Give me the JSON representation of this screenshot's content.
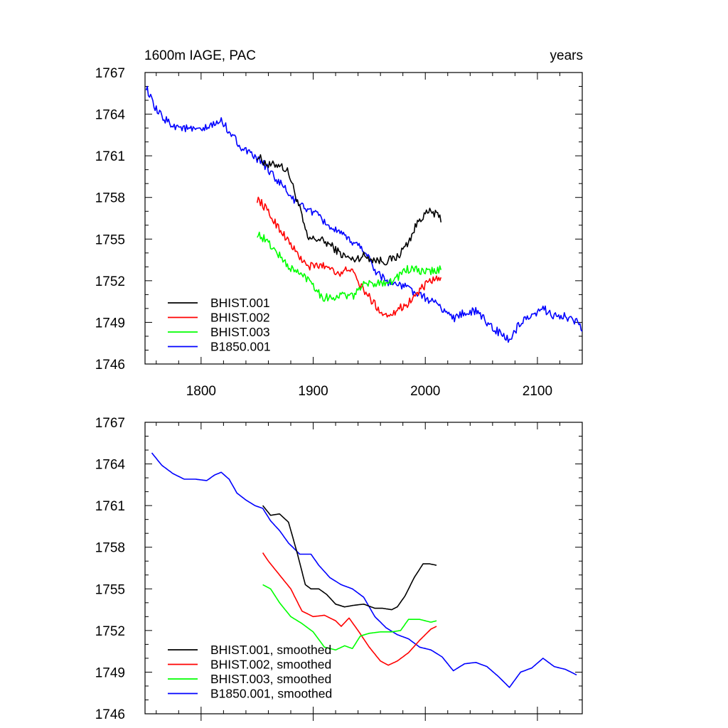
{
  "chart_data": [
    {
      "type": "line",
      "title_left": "1600m IAGE, PAC",
      "title_right": "years",
      "xlim": [
        1750,
        2140
      ],
      "ylim": [
        1746,
        1767
      ],
      "xticks": [
        1800,
        1900,
        2000,
        2100
      ],
      "xtick_labels": [
        "1800",
        "1900",
        "2000",
        "2100"
      ],
      "yticks": [
        1746,
        1749,
        1752,
        1755,
        1758,
        1761,
        1764,
        1767
      ],
      "ytick_labels": [
        "1746",
        "1749",
        "1752",
        "1755",
        "1758",
        "1761",
        "1764",
        "1767"
      ],
      "legend": [
        "BHIST.001",
        "BHIST.002",
        "BHIST.003",
        "B1850.001"
      ],
      "series": [
        {
          "name": "BHIST.001",
          "color": "#000000",
          "noise": 0.3,
          "x": [
            1850,
            1860,
            1870,
            1878,
            1888,
            1895,
            1905,
            1915,
            1925,
            1935,
            1945,
            1955,
            1965,
            1975,
            1985,
            1995,
            2005,
            2014
          ],
          "y": [
            1761.0,
            1760.3,
            1760.4,
            1759.8,
            1757.2,
            1755.0,
            1755.0,
            1754.6,
            1753.9,
            1753.5,
            1753.8,
            1753.5,
            1753.4,
            1753.7,
            1754.8,
            1756.5,
            1757.0,
            1756.5
          ]
        },
        {
          "name": "BHIST.002",
          "color": "#ff0000",
          "noise": 0.3,
          "x": [
            1850,
            1855,
            1865,
            1875,
            1885,
            1895,
            1905,
            1915,
            1925,
            1932,
            1940,
            1950,
            1960,
            1965,
            1975,
            1985,
            1995,
            2005,
            2014
          ],
          "y": [
            1757.9,
            1757.5,
            1756.3,
            1755.2,
            1754.0,
            1753.0,
            1753.1,
            1753.0,
            1752.4,
            1753.0,
            1751.9,
            1750.8,
            1749.8,
            1749.5,
            1749.9,
            1750.4,
            1751.3,
            1752.0,
            1752.1
          ]
        },
        {
          "name": "BHIST.003",
          "color": "#00ff00",
          "noise": 0.3,
          "x": [
            1850,
            1858,
            1868,
            1878,
            1888,
            1898,
            1908,
            1918,
            1928,
            1935,
            1942,
            1952,
            1962,
            1972,
            1982,
            1990,
            2000,
            2014
          ],
          "y": [
            1755.4,
            1754.9,
            1754.0,
            1753.0,
            1752.5,
            1752.0,
            1750.8,
            1750.8,
            1751.0,
            1750.8,
            1751.6,
            1751.8,
            1751.9,
            1752.0,
            1752.8,
            1752.8,
            1752.6,
            1752.8
          ]
        },
        {
          "name": "B1850.001",
          "color": "#0000ff",
          "noise": 0.3,
          "x": [
            1751,
            1758,
            1765,
            1775,
            1790,
            1800,
            1810,
            1818,
            1825,
            1835,
            1845,
            1855,
            1865,
            1875,
            1885,
            1895,
            1905,
            1915,
            1925,
            1935,
            1945,
            1955,
            1965,
            1975,
            1985,
            1995,
            2005,
            2015,
            2025,
            2035,
            2045,
            2055,
            2065,
            2075,
            2085,
            2095,
            2105,
            2115,
            2125,
            2135,
            2140
          ],
          "y": [
            1766.0,
            1764.5,
            1763.8,
            1763.2,
            1762.9,
            1762.8,
            1763.2,
            1763.5,
            1762.8,
            1761.7,
            1761.0,
            1760.5,
            1759.5,
            1758.6,
            1757.6,
            1757.2,
            1756.6,
            1755.9,
            1755.3,
            1754.8,
            1754.3,
            1752.8,
            1752.0,
            1751.7,
            1751.5,
            1750.9,
            1750.6,
            1750.0,
            1749.3,
            1749.7,
            1749.8,
            1749.0,
            1748.3,
            1747.7,
            1749.0,
            1749.3,
            1750.0,
            1749.5,
            1749.4,
            1749.0,
            1748.5
          ]
        }
      ]
    },
    {
      "type": "line",
      "xlim": [
        1750,
        2140
      ],
      "ylim": [
        1746,
        1767
      ],
      "xticks": [
        1800,
        1900,
        2000,
        2100
      ],
      "yticks": [
        1746,
        1749,
        1752,
        1755,
        1758,
        1761,
        1764,
        1767
      ],
      "ytick_labels": [
        "1746",
        "1749",
        "1752",
        "1755",
        "1758",
        "1761",
        "1764",
        "1767"
      ],
      "legend": [
        "BHIST.001, smoothed",
        "BHIST.002, smoothed",
        "BHIST.003, smoothed",
        "B1850.001, smoothed"
      ],
      "series": [
        {
          "name": "BHIST.001, smoothed",
          "color": "#000000",
          "x": [
            1855,
            1862,
            1870,
            1878,
            1886,
            1893,
            1898,
            1905,
            1912,
            1920,
            1928,
            1935,
            1945,
            1955,
            1962,
            1970,
            1975,
            1982,
            1990,
            1998,
            2004,
            2010
          ],
          "y": [
            1761.0,
            1760.3,
            1760.4,
            1759.8,
            1757.5,
            1755.3,
            1755.0,
            1755.0,
            1754.6,
            1753.9,
            1753.7,
            1753.8,
            1753.9,
            1753.6,
            1753.6,
            1753.5,
            1753.7,
            1754.5,
            1755.8,
            1756.8,
            1756.8,
            1756.7
          ]
        },
        {
          "name": "BHIST.002, smoothed",
          "color": "#ff0000",
          "x": [
            1855,
            1860,
            1870,
            1880,
            1890,
            1900,
            1910,
            1920,
            1925,
            1932,
            1940,
            1950,
            1960,
            1967,
            1975,
            1985,
            1995,
            2005,
            2010
          ],
          "y": [
            1757.6,
            1757.0,
            1756.0,
            1755.0,
            1753.4,
            1753.0,
            1753.1,
            1752.7,
            1752.3,
            1752.9,
            1752.0,
            1750.8,
            1749.8,
            1749.5,
            1749.8,
            1750.4,
            1751.3,
            1752.1,
            1752.3
          ]
        },
        {
          "name": "BHIST.003, smoothed",
          "color": "#00ff00",
          "x": [
            1855,
            1862,
            1870,
            1880,
            1890,
            1900,
            1910,
            1920,
            1928,
            1935,
            1942,
            1950,
            1960,
            1970,
            1978,
            1985,
            1995,
            2005,
            2010
          ],
          "y": [
            1755.3,
            1755.0,
            1754.0,
            1753.0,
            1752.5,
            1751.9,
            1750.8,
            1750.6,
            1750.9,
            1750.7,
            1751.6,
            1751.8,
            1751.9,
            1751.9,
            1752.0,
            1752.8,
            1752.8,
            1752.6,
            1752.7
          ]
        },
        {
          "name": "B1850.001, smoothed",
          "color": "#0000ff",
          "x": [
            1756,
            1765,
            1775,
            1785,
            1795,
            1805,
            1812,
            1818,
            1825,
            1832,
            1840,
            1848,
            1855,
            1862,
            1870,
            1878,
            1888,
            1898,
            1905,
            1915,
            1925,
            1935,
            1945,
            1955,
            1965,
            1975,
            1985,
            1995,
            2005,
            2015,
            2025,
            2035,
            2045,
            2055,
            2065,
            2075,
            2085,
            2095,
            2105,
            2115,
            2125,
            2135
          ],
          "y": [
            1764.8,
            1763.9,
            1763.3,
            1762.9,
            1762.9,
            1762.8,
            1763.2,
            1763.4,
            1762.9,
            1761.9,
            1761.4,
            1761.0,
            1760.8,
            1759.9,
            1759.2,
            1758.3,
            1757.5,
            1757.5,
            1756.7,
            1755.8,
            1755.3,
            1755.0,
            1754.4,
            1753.0,
            1752.2,
            1751.7,
            1751.4,
            1750.8,
            1750.6,
            1750.1,
            1749.1,
            1749.6,
            1749.7,
            1749.4,
            1748.7,
            1747.9,
            1749.0,
            1749.3,
            1750.0,
            1749.4,
            1749.2,
            1748.8
          ]
        }
      ]
    }
  ]
}
